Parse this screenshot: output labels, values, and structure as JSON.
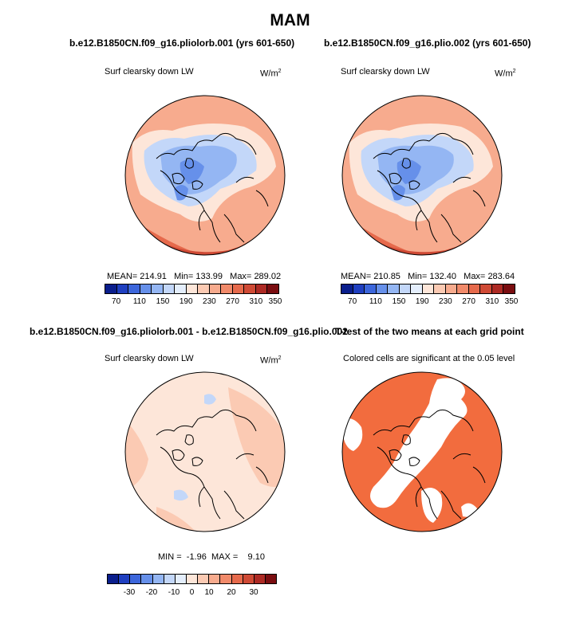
{
  "title": "MAM",
  "panels": [
    {
      "title": "b.e12.B1850CN.f09_g16.pliolorb.001 (yrs 601-650)",
      "variable": "Surf clearsky down LW",
      "units": "W/m",
      "units_sup": "2",
      "stats": {
        "mean_label": "MEAN=",
        "mean": "214.91",
        "min_label": "Min=",
        "min": "133.99",
        "max_label": "Max=",
        "max": "289.02"
      },
      "colorbar": [
        "70",
        "110",
        "150",
        "190",
        "230",
        "270",
        "310",
        "350"
      ]
    },
    {
      "title": "b.e12.B1850CN.f09_g16.plio.002 (yrs 601-650)",
      "variable": "Surf clearsky down LW",
      "units": "W/m",
      "units_sup": "2",
      "stats": {
        "mean_label": "MEAN=",
        "mean": "210.85",
        "min_label": "Min=",
        "min": "132.40",
        "max_label": "Max=",
        "max": "283.64"
      },
      "colorbar": [
        "70",
        "110",
        "150",
        "190",
        "230",
        "270",
        "310",
        "350"
      ]
    },
    {
      "title": "b.e12.B1850CN.f09_g16.pliolorb.001 - b.e12.B1850CN.f09_g16.plio.002",
      "variable": "Surf clearsky down LW",
      "units": "W/m",
      "units_sup": "2",
      "stats": {
        "min_label": "MIN =",
        "min": "-1.96",
        "max_label": "MAX =",
        "max": "9.10"
      },
      "colorbar": [
        "-30",
        "-20",
        "-10",
        "0",
        "10",
        "20",
        "30"
      ]
    },
    {
      "title": "T-test of the two means at each grid point",
      "subtitle": "Colored cells are significant at the 0.05 level"
    }
  ],
  "colors": {
    "abs_scale": [
      "#0a1e8c",
      "#1f3fc0",
      "#3c66db",
      "#6690ea",
      "#94b6f3",
      "#c3d7f9",
      "#e4eefc",
      "#fde6d9",
      "#fbcab3",
      "#f7ab8e",
      "#f18a6a",
      "#e66a4c",
      "#cf4a35",
      "#ad2a24",
      "#7a0d10"
    ],
    "diff_scale": [
      "#0a1e8c",
      "#1f3fc0",
      "#3c66db",
      "#6690ea",
      "#94b6f3",
      "#c3d7f9",
      "#e4eefc",
      "#fde6d9",
      "#fbcab3",
      "#f7ab8e",
      "#f18a6a",
      "#e66a4c",
      "#cf4a35",
      "#ad2a24",
      "#7a0d10"
    ],
    "signif": "#f26c3e"
  }
}
